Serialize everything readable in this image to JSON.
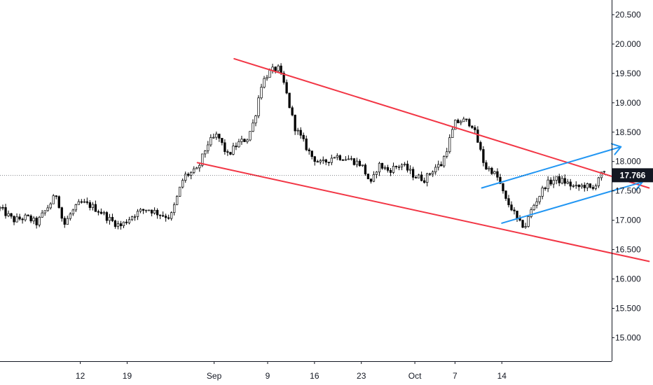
{
  "chart_data": {
    "type": "candlestick",
    "title": "",
    "xlabel": "",
    "ylabel": "",
    "ylim": [
      14.6,
      20.75
    ],
    "y_ticks": [
      "20.500",
      "20.000",
      "19.500",
      "19.000",
      "18.500",
      "18.000",
      "17.500",
      "17.000",
      "16.500",
      "16.000",
      "15.500",
      "15.000"
    ],
    "x_ticks": [
      {
        "label": "12",
        "day": 12
      },
      {
        "label": "19",
        "day": 19
      },
      {
        "label": "Sep",
        "day": 32
      },
      {
        "label": "9",
        "day": 40
      },
      {
        "label": "16",
        "day": 47
      },
      {
        "label": "23",
        "day": 54
      },
      {
        "label": "Oct",
        "day": 62
      },
      {
        "label": "7",
        "day": 68
      },
      {
        "label": "14",
        "day": 75
      }
    ],
    "last_price": "17.766",
    "last_price_value": 17.766,
    "price_path": [
      [
        0,
        17.2
      ],
      [
        2,
        17.0
      ],
      [
        4,
        17.05
      ],
      [
        5.5,
        16.95
      ],
      [
        7,
        17.2
      ],
      [
        8.5,
        17.45
      ],
      [
        9.5,
        16.9
      ],
      [
        10.5,
        17.1
      ],
      [
        12,
        17.3
      ],
      [
        13.5,
        17.25
      ],
      [
        15,
        17.15
      ],
      [
        16.5,
        17.0
      ],
      [
        18,
        16.9
      ],
      [
        20,
        17.1
      ],
      [
        22,
        17.2
      ],
      [
        24,
        17.1
      ],
      [
        25.5,
        17.05
      ],
      [
        26.5,
        17.4
      ],
      [
        27.5,
        17.75
      ],
      [
        29.5,
        17.85
      ],
      [
        31,
        18.3
      ],
      [
        32.5,
        18.45
      ],
      [
        34,
        18.1
      ],
      [
        35.5,
        18.3
      ],
      [
        37,
        18.4
      ],
      [
        38,
        18.7
      ],
      [
        39,
        19.3
      ],
      [
        40,
        19.5
      ],
      [
        41.5,
        19.6
      ],
      [
        42.5,
        19.3
      ],
      [
        44,
        18.6
      ],
      [
        45.5,
        18.3
      ],
      [
        46.5,
        18.1
      ],
      [
        48,
        17.95
      ],
      [
        50,
        18.1
      ],
      [
        52,
        18.05
      ],
      [
        54,
        17.95
      ],
      [
        55.5,
        17.6
      ],
      [
        56.5,
        17.95
      ],
      [
        58,
        17.85
      ],
      [
        60,
        17.95
      ],
      [
        62,
        17.75
      ],
      [
        63.5,
        17.7
      ],
      [
        65,
        17.9
      ],
      [
        66,
        17.95
      ],
      [
        67,
        18.3
      ],
      [
        68,
        18.65
      ],
      [
        69,
        18.7
      ],
      [
        70.5,
        18.65
      ],
      [
        71.5,
        18.3
      ],
      [
        72.5,
        17.9
      ],
      [
        73.5,
        17.85
      ],
      [
        74.5,
        17.7
      ],
      [
        75.5,
        17.35
      ],
      [
        76.5,
        17.2
      ],
      [
        77.5,
        16.95
      ],
      [
        78.5,
        16.9
      ],
      [
        79.5,
        17.2
      ],
      [
        80.5,
        17.4
      ],
      [
        81.5,
        17.6
      ],
      [
        83,
        17.7
      ],
      [
        84.5,
        17.65
      ],
      [
        86,
        17.55
      ],
      [
        87.5,
        17.6
      ],
      [
        88.5,
        17.5
      ],
      [
        89.5,
        17.75
      ],
      [
        90.5,
        17.8
      ]
    ],
    "series": [],
    "channel_lines": [
      {
        "color": "#f23645",
        "points": [
          [
            35,
            19.75
          ],
          [
            97,
            17.55
          ]
        ],
        "arrow": false
      },
      {
        "color": "#f23645",
        "points": [
          [
            29.5,
            17.98
          ],
          [
            97,
            16.3
          ]
        ],
        "arrow": false
      },
      {
        "color": "#2196f3",
        "points": [
          [
            72,
            17.55
          ],
          [
            92.8,
            18.25
          ]
        ],
        "arrow": true
      },
      {
        "color": "#2196f3",
        "points": [
          [
            75,
            16.95
          ],
          [
            96,
            17.65
          ]
        ],
        "arrow": true
      }
    ],
    "grid": false,
    "legend": "none"
  }
}
